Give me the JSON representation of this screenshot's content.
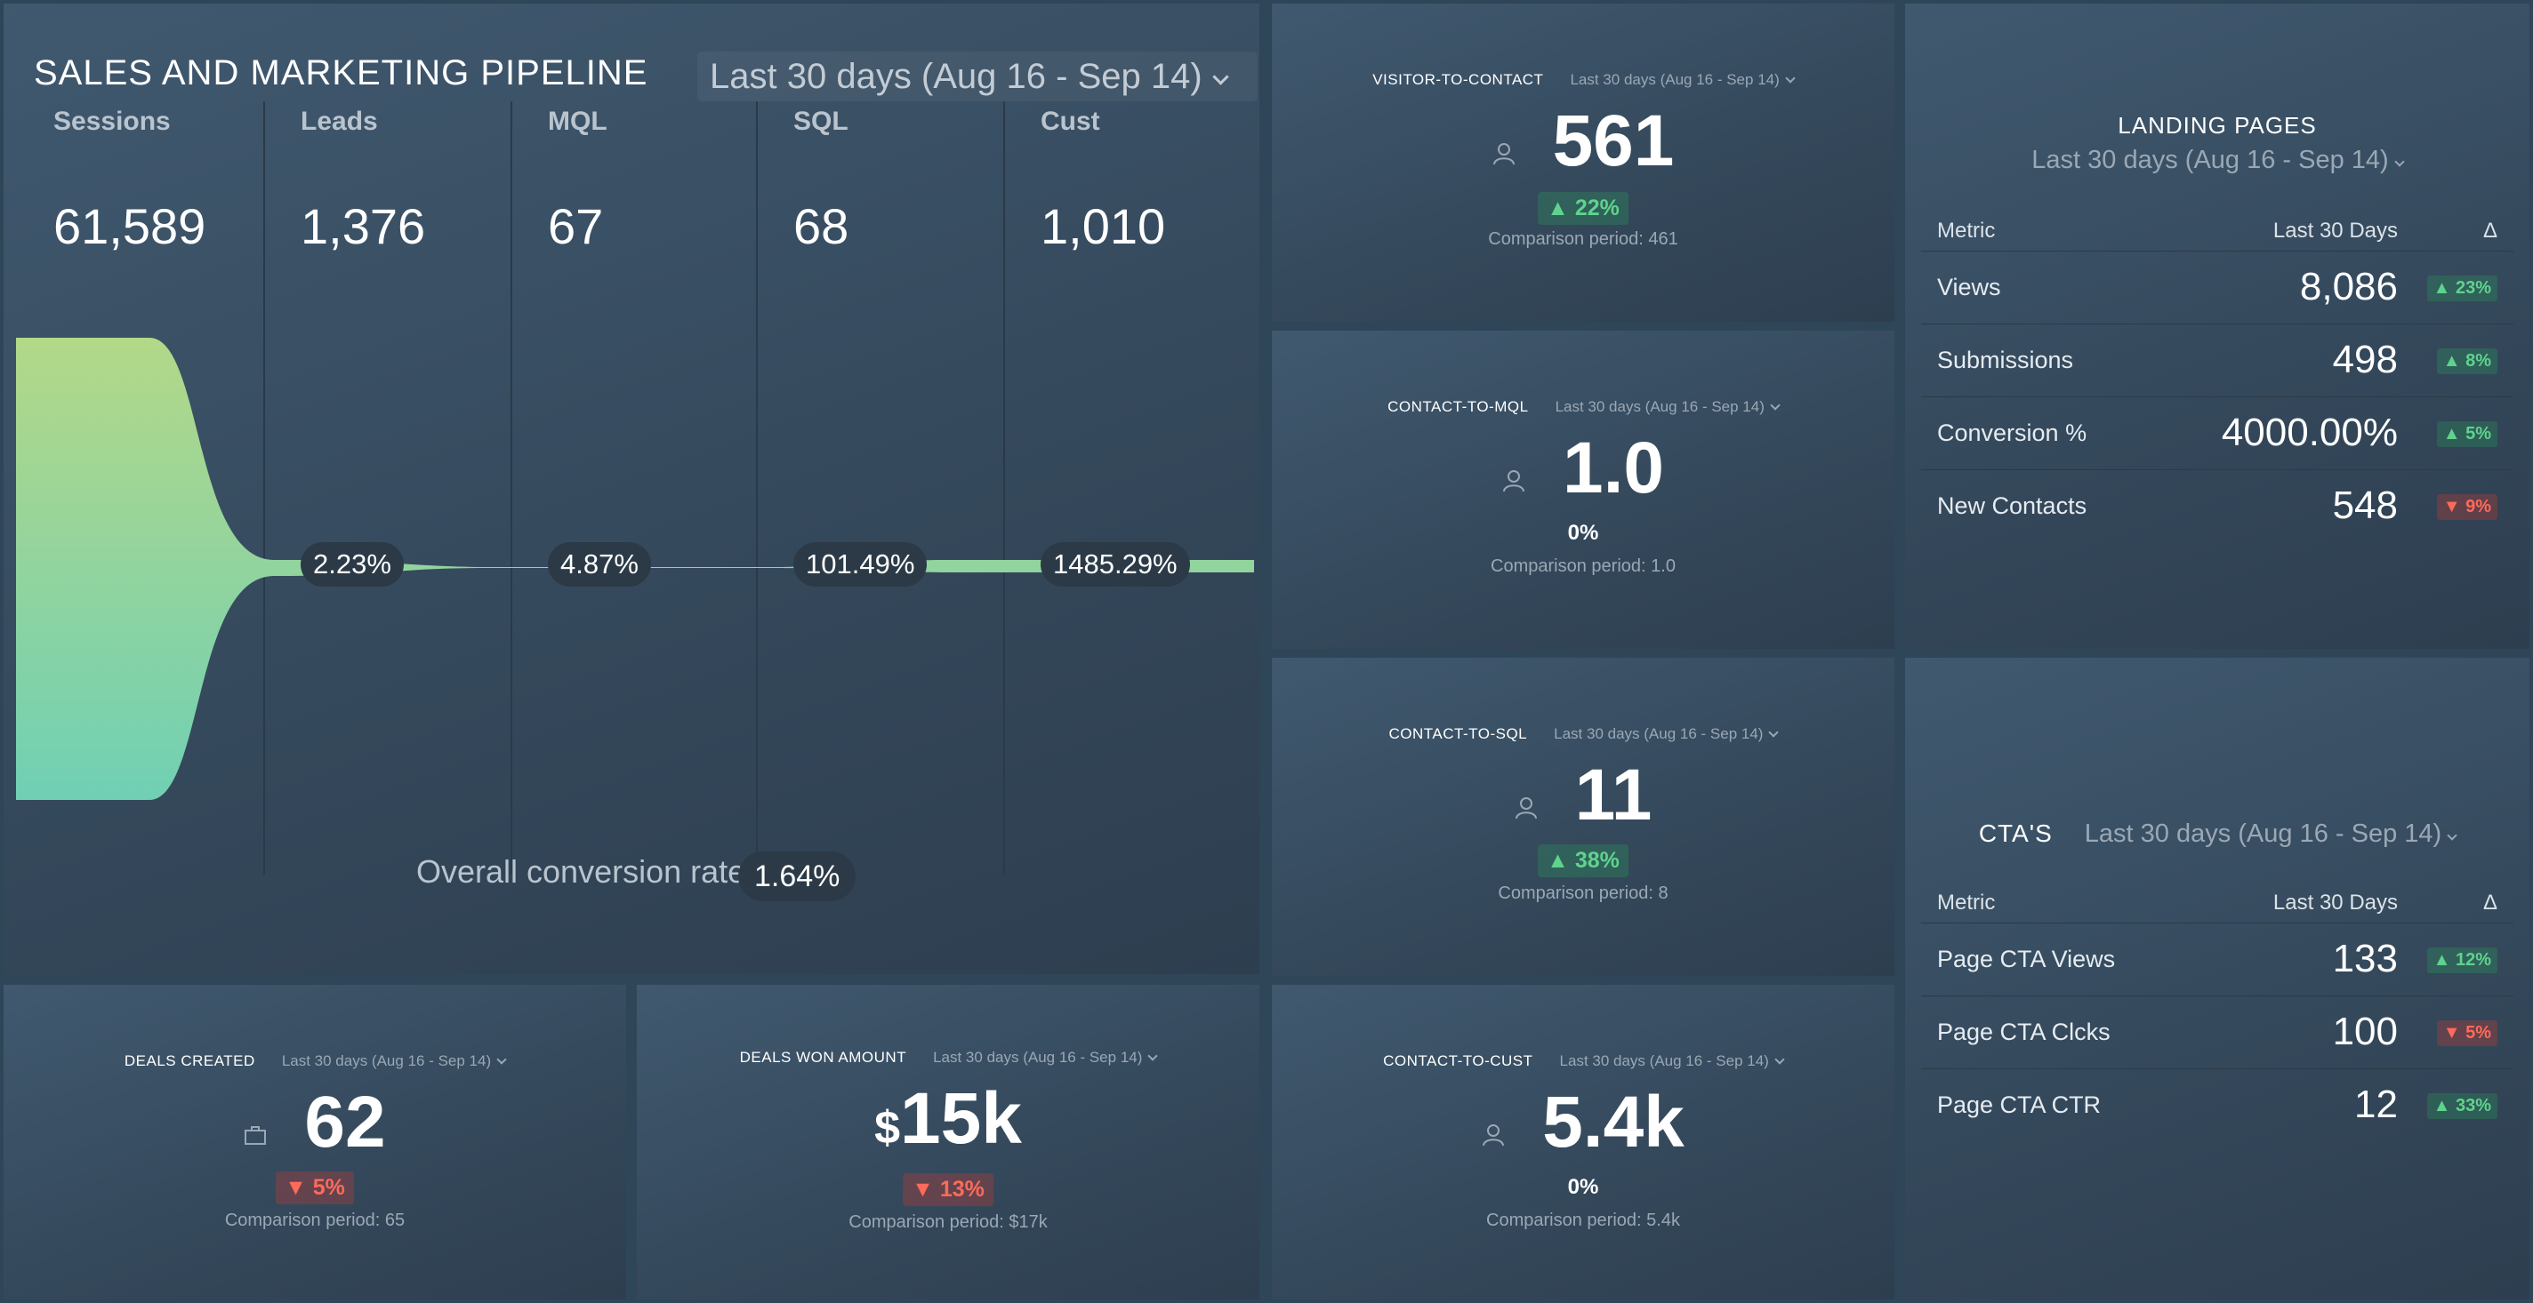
{
  "pipeline": {
    "title": "SALES AND MARKETING PIPELINE",
    "range": "Last 30 days (Aug 16 - Sep 14)",
    "stages": [
      {
        "label": "Sessions",
        "value": "61,589"
      },
      {
        "label": "Leads",
        "value": "1,376"
      },
      {
        "label": "MQL",
        "value": "67"
      },
      {
        "label": "SQL",
        "value": "68"
      },
      {
        "label": "Cust",
        "value": "1,010"
      }
    ],
    "rates": [
      "2.23%",
      "4.87%",
      "101.49%",
      "1485.29%"
    ],
    "overall_label": "Overall conversion rate",
    "overall_value": "1.64%",
    "colors": {
      "funnel_top": "#b3d888",
      "funnel_bottom": "#70d0b4"
    }
  },
  "kpis": {
    "visitor_to_contact": {
      "name": "VISITOR-TO-CONTACT",
      "range": "Last 30 days (Aug 16 - Sep 14)",
      "value": "561",
      "change": "▲ 22%",
      "comparison": "Comparison period: 461",
      "icon": "user-icon"
    },
    "contact_to_mql": {
      "name": "CONTACT-TO-MQL",
      "range": "Last 30 days (Aug 16 - Sep 14)",
      "value": "1.0",
      "change": "0%",
      "comparison": "Comparison period: 1.0",
      "icon": "user-icon"
    },
    "contact_to_sql": {
      "name": "CONTACT-TO-SQL",
      "range": "Last 30 days (Aug 16 - Sep 14)",
      "value": "11",
      "change": "▲ 38%",
      "comparison": "Comparison period: 8",
      "icon": "user-icon"
    },
    "contact_to_cust": {
      "name": "CONTACT-TO-CUST",
      "range": "Last 30 days (Aug 16 - Sep 14)",
      "value": "5.4k",
      "change": "0%",
      "comparison": "Comparison period: 5.4k",
      "icon": "user-icon"
    },
    "deals_created": {
      "name": "DEALS CREATED",
      "range": "Last 30 days (Aug 16 - Sep 14)",
      "value": "62",
      "change": "▼ 5%",
      "comparison": "Comparison period: 65",
      "icon": "briefcase-icon"
    },
    "deals_won_amount": {
      "name": "DEALS WON AMOUNT",
      "range": "Last 30 days (Aug 16 - Sep 14)",
      "currency": "$",
      "value": "15k",
      "change": "▼ 13%",
      "comparison": "Comparison period: $17k"
    }
  },
  "landing_pages": {
    "title": "LANDING PAGES",
    "range": "Last 30 days (Aug 16 - Sep 14)",
    "columns": [
      "Metric",
      "Last 30 Days",
      "Δ"
    ],
    "rows": [
      {
        "metric": "Views",
        "value": "8,086",
        "delta": "▲ 23%",
        "dir": "up"
      },
      {
        "metric": "Submissions",
        "value": "498",
        "delta": "▲ 8%",
        "dir": "up"
      },
      {
        "metric": "Conversion %",
        "value": "4000.00%",
        "delta": "▲ 5%",
        "dir": "up"
      },
      {
        "metric": "New Contacts",
        "value": "548",
        "delta": "▼ 9%",
        "dir": "down"
      }
    ]
  },
  "ctas": {
    "title": "CTA'S",
    "range": "Last 30 days (Aug 16 - Sep 14)",
    "columns": [
      "Metric",
      "Last 30 Days",
      "Δ"
    ],
    "rows": [
      {
        "metric": "Page CTA Views",
        "value": "133",
        "delta": "▲ 12%",
        "dir": "up"
      },
      {
        "metric": "Page CTA Clcks",
        "value": "100",
        "delta": "▼ 5%",
        "dir": "down"
      },
      {
        "metric": "Page CTA CTR",
        "value": "12",
        "delta": "▲ 33%",
        "dir": "up"
      }
    ]
  }
}
